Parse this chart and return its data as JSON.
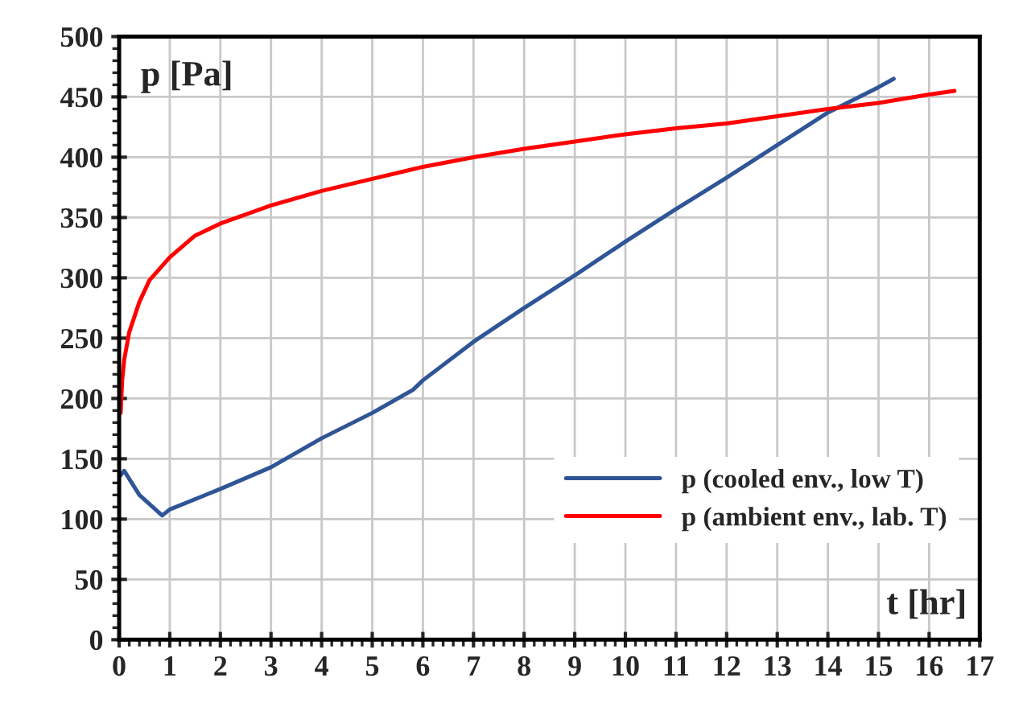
{
  "chart_data": {
    "type": "line",
    "xlabel": "t [hr]",
    "ylabel": "p [Pa]",
    "series": [
      {
        "name": "p (cooled env., low T)",
        "color": "#2f5597",
        "x": [
          0,
          0.1,
          0.4,
          0.85,
          1,
          2,
          3,
          3.5,
          4,
          5,
          5.8,
          6,
          7,
          8,
          9,
          10,
          11,
          12,
          13,
          14,
          15,
          15.3
        ],
        "values": [
          135,
          140,
          120,
          103,
          108,
          125,
          143,
          155,
          167,
          188,
          207,
          215,
          247,
          275,
          302,
          330,
          357,
          383,
          410,
          437,
          458,
          465
        ]
      },
      {
        "name": "p (ambient env., lab. T)",
        "color": "#ff0000",
        "x": [
          0.03,
          0.06,
          0.1,
          0.2,
          0.4,
          0.6,
          1,
          1.5,
          2,
          3,
          4,
          5,
          6,
          7,
          8,
          9,
          10,
          11,
          12,
          13,
          14,
          15,
          16,
          16.5
        ],
        "values": [
          188,
          215,
          232,
          255,
          280,
          298,
          317,
          335,
          345,
          360,
          372,
          382,
          392,
          400,
          407,
          413,
          419,
          424,
          428,
          434,
          440,
          445,
          452,
          455
        ]
      }
    ],
    "xlim": [
      0,
      17
    ],
    "xticks": [
      0,
      1,
      2,
      3,
      4,
      5,
      6,
      7,
      8,
      9,
      10,
      11,
      12,
      13,
      14,
      15,
      16,
      17
    ],
    "ylim": [
      0,
      500
    ],
    "yticks": [
      0,
      50,
      100,
      150,
      200,
      250,
      300,
      350,
      400,
      450,
      500
    ],
    "grid": true,
    "legend": "bottom right"
  }
}
